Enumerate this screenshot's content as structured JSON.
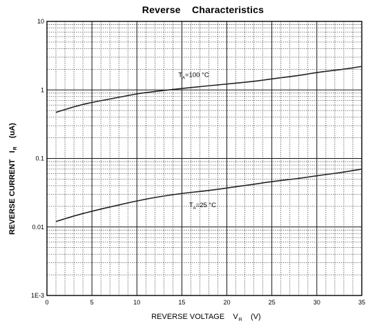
{
  "chart_data": {
    "type": "line",
    "title": "Reverse    Characteristics",
    "xlabel": "REVERSE VOLTAGE",
    "xlabel_symbol": "V",
    "xlabel_subscript": "R",
    "xlabel_unit": "(V)",
    "ylabel": "REVERSE CURRENT",
    "ylabel_symbol": "I",
    "ylabel_subscript": "R",
    "ylabel_unit": "(uA)",
    "xlim": [
      0,
      35
    ],
    "ylim": [
      0.001,
      10
    ],
    "yscale": "log",
    "grid": true,
    "xticks": [
      0,
      5,
      10,
      15,
      20,
      25,
      30,
      35
    ],
    "xtick_labels": [
      "0",
      "5",
      "10",
      "15",
      "20",
      "25",
      "30",
      "35"
    ],
    "yticks": [
      0.001,
      0.01,
      0.1,
      1,
      10
    ],
    "ytick_labels": [
      "1E-3",
      "0.01",
      "0.1",
      "1",
      "10"
    ],
    "series": [
      {
        "label_main": "T",
        "label_sub": "A",
        "label_rest": "=100 °C",
        "color": "#222222",
        "x": [
          1,
          3,
          5,
          8,
          10,
          12,
          15,
          18,
          20,
          23,
          25,
          28,
          30,
          33,
          35
        ],
        "y": [
          0.47,
          0.57,
          0.66,
          0.78,
          0.88,
          0.95,
          1.05,
          1.15,
          1.22,
          1.33,
          1.45,
          1.62,
          1.8,
          2.0,
          2.2
        ]
      },
      {
        "label_main": "T",
        "label_sub": "A",
        "label_rest": "=25 °C",
        "color": "#222222",
        "x": [
          1,
          3,
          5,
          8,
          10,
          12,
          15,
          18,
          20,
          23,
          25,
          28,
          30,
          33,
          35
        ],
        "y": [
          0.012,
          0.0145,
          0.017,
          0.021,
          0.024,
          0.027,
          0.031,
          0.034,
          0.037,
          0.042,
          0.046,
          0.051,
          0.056,
          0.063,
          0.07
        ]
      }
    ]
  }
}
